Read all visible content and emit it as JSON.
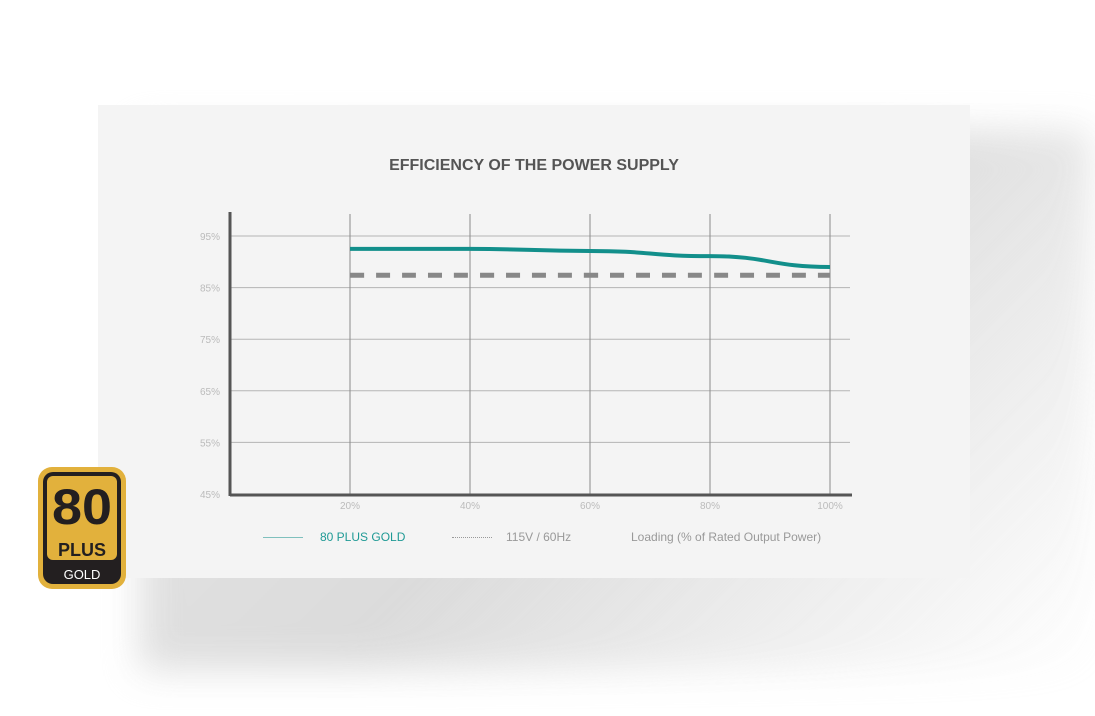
{
  "chart_data": {
    "type": "line",
    "title": "EFFICIENCY OF THE POWER SUPPLY",
    "xlabel": "Loading (% of Rated Output Power)",
    "ylabel": "",
    "x_ticks": [
      "20%",
      "40%",
      "60%",
      "80%",
      "100%"
    ],
    "y_ticks": [
      "45%",
      "55%",
      "65%",
      "75%",
      "85%",
      "95%"
    ],
    "xlim": [
      0,
      100
    ],
    "ylim": [
      45,
      95
    ],
    "grid": true,
    "legend_placement": "bottom",
    "series": [
      {
        "name": "80 PLUS GOLD",
        "x": [
          20,
          40,
          60,
          80,
          100
        ],
        "y": [
          92.5,
          92.5,
          92.1,
          91.1,
          89.0
        ],
        "color": "#128f8b",
        "style": "solid"
      },
      {
        "name": "115V / 60Hz",
        "x": [
          20,
          40,
          60,
          80,
          100
        ],
        "y": [
          87.4,
          87.4,
          87.4,
          87.4,
          87.4
        ],
        "color": "#888888",
        "style": "dashed"
      }
    ]
  },
  "badge": {
    "number": "80",
    "plus": "PLUS",
    "tier": "GOLD",
    "color": "#e2b13c"
  }
}
